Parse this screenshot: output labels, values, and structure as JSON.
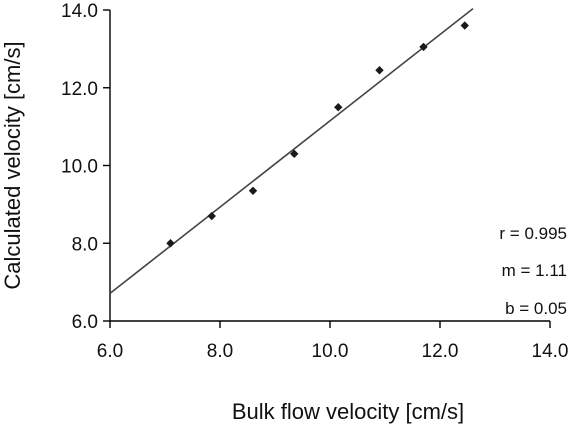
{
  "chart_data": {
    "type": "scatter",
    "title": "",
    "xlabel": "Bulk flow velocity [cm/s]",
    "ylabel": "Calculated velocity [cm/s]",
    "xlim": [
      6.0,
      14.0
    ],
    "ylim": [
      6.0,
      14.0
    ],
    "xticks": [
      "6.0",
      "8.0",
      "10.0",
      "12.0",
      "14.0"
    ],
    "yticks": [
      "6.0",
      "8.0",
      "10.0",
      "12.0",
      "14.0"
    ],
    "grid": false,
    "marker": "diamond",
    "colors": {
      "points": "#1a1a1a",
      "line": "#444444",
      "axes": "#000000"
    },
    "series": [
      {
        "x": [
          7.1,
          7.85,
          8.6,
          9.35,
          10.15,
          10.9,
          11.7,
          12.45
        ],
        "y": [
          8.0,
          8.7,
          9.35,
          10.3,
          11.5,
          12.45,
          13.05,
          13.6
        ]
      }
    ],
    "fit_line": {
      "x_start": 6.0,
      "x_end": 12.6,
      "slope": 1.11,
      "intercept": 0.05
    },
    "annotations": [
      "r = 0.995",
      "m = 1.11",
      "b = 0.05"
    ]
  }
}
